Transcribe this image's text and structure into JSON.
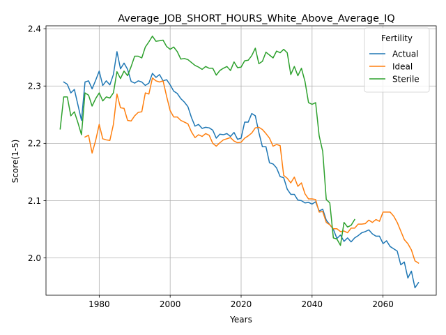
{
  "chart_data": {
    "type": "line",
    "title": "Average_JOB_SHORT_HOURS_White_Above_Average_IQ",
    "xlabel": "Years",
    "ylabel": "Score(1-5)",
    "xlim": [
      1965,
      2075
    ],
    "ylim": [
      1.935,
      2.405
    ],
    "x_ticks": [
      1980,
      2000,
      2020,
      2040,
      2060
    ],
    "y_ticks": [
      2.0,
      2.1,
      2.2,
      2.3,
      2.4
    ],
    "grid": true,
    "legend": {
      "title": "Fertility",
      "placement": "top-right"
    },
    "series": [
      {
        "name": "Actual",
        "color": "#1f77b4",
        "points": [
          [
            1970,
            2.307
          ],
          [
            1971,
            2.303
          ],
          [
            1972,
            2.288
          ],
          [
            1973,
            2.294
          ],
          [
            1974,
            2.267
          ],
          [
            1975,
            2.24
          ],
          [
            1976,
            2.307
          ],
          [
            1977,
            2.309
          ],
          [
            1978,
            2.295
          ],
          [
            1979,
            2.31
          ],
          [
            1980,
            2.326
          ],
          [
            1981,
            2.301
          ],
          [
            1982,
            2.309
          ],
          [
            1983,
            2.302
          ],
          [
            1984,
            2.32
          ],
          [
            1985,
            2.36
          ],
          [
            1986,
            2.33
          ],
          [
            1987,
            2.34
          ],
          [
            1988,
            2.329
          ],
          [
            1989,
            2.308
          ],
          [
            1990,
            2.305
          ],
          [
            1991,
            2.309
          ],
          [
            1992,
            2.307
          ],
          [
            1993,
            2.301
          ],
          [
            1994,
            2.305
          ],
          [
            1995,
            2.322
          ],
          [
            1996,
            2.315
          ],
          [
            1997,
            2.32
          ],
          [
            1998,
            2.309
          ],
          [
            1999,
            2.311
          ],
          [
            2000,
            2.302
          ],
          [
            2001,
            2.291
          ],
          [
            2002,
            2.287
          ],
          [
            2003,
            2.278
          ],
          [
            2004,
            2.272
          ],
          [
            2005,
            2.264
          ],
          [
            2006,
            2.245
          ],
          [
            2007,
            2.23
          ],
          [
            2008,
            2.233
          ],
          [
            2009,
            2.226
          ],
          [
            2010,
            2.228
          ],
          [
            2011,
            2.227
          ],
          [
            2012,
            2.223
          ],
          [
            2013,
            2.209
          ],
          [
            2014,
            2.216
          ],
          [
            2015,
            2.215
          ],
          [
            2016,
            2.217
          ],
          [
            2017,
            2.212
          ],
          [
            2018,
            2.219
          ],
          [
            2019,
            2.207
          ],
          [
            2020,
            2.209
          ],
          [
            2021,
            2.237
          ],
          [
            2022,
            2.237
          ],
          [
            2023,
            2.252
          ],
          [
            2024,
            2.248
          ],
          [
            2025,
            2.219
          ],
          [
            2026,
            2.194
          ],
          [
            2027,
            2.194
          ],
          [
            2028,
            2.166
          ],
          [
            2029,
            2.164
          ],
          [
            2030,
            2.157
          ],
          [
            2031,
            2.142
          ],
          [
            2032,
            2.14
          ],
          [
            2033,
            2.12
          ],
          [
            2034,
            2.111
          ],
          [
            2035,
            2.111
          ],
          [
            2036,
            2.101
          ],
          [
            2037,
            2.1
          ],
          [
            2038,
            2.096
          ],
          [
            2039,
            2.097
          ],
          [
            2040,
            2.094
          ],
          [
            2041,
            2.098
          ],
          [
            2042,
            2.082
          ],
          [
            2043,
            2.085
          ],
          [
            2044,
            2.066
          ],
          [
            2045,
            2.058
          ],
          [
            2046,
            2.05
          ],
          [
            2047,
            2.034
          ],
          [
            2048,
            2.04
          ],
          [
            2049,
            2.029
          ],
          [
            2050,
            2.035
          ],
          [
            2051,
            2.028
          ],
          [
            2052,
            2.035
          ],
          [
            2053,
            2.039
          ],
          [
            2054,
            2.044
          ],
          [
            2055,
            2.046
          ],
          [
            2056,
            2.049
          ],
          [
            2057,
            2.042
          ],
          [
            2058,
            2.038
          ],
          [
            2059,
            2.038
          ],
          [
            2060,
            2.025
          ],
          [
            2061,
            2.03
          ],
          [
            2062,
            2.02
          ],
          [
            2063,
            2.016
          ],
          [
            2064,
            2.012
          ],
          [
            2065,
            1.988
          ],
          [
            2066,
            1.993
          ],
          [
            2067,
            1.965
          ],
          [
            2068,
            1.977
          ],
          [
            2069,
            1.948
          ],
          [
            2070,
            1.957
          ]
        ]
      },
      {
        "name": "Ideal",
        "color": "#ff7f0e",
        "points": [
          [
            1976,
            2.211
          ],
          [
            1977,
            2.214
          ],
          [
            1978,
            2.183
          ],
          [
            1979,
            2.205
          ],
          [
            1980,
            2.233
          ],
          [
            1981,
            2.208
          ],
          [
            1982,
            2.206
          ],
          [
            1983,
            2.205
          ],
          [
            1984,
            2.233
          ],
          [
            1985,
            2.286
          ],
          [
            1986,
            2.262
          ],
          [
            1987,
            2.261
          ],
          [
            1988,
            2.24
          ],
          [
            1989,
            2.239
          ],
          [
            1990,
            2.248
          ],
          [
            1991,
            2.254
          ],
          [
            1992,
            2.255
          ],
          [
            1993,
            2.288
          ],
          [
            1994,
            2.286
          ],
          [
            1995,
            2.314
          ],
          [
            1996,
            2.309
          ],
          [
            1997,
            2.307
          ],
          [
            1998,
            2.309
          ],
          [
            1999,
            2.282
          ],
          [
            2000,
            2.257
          ],
          [
            2001,
            2.246
          ],
          [
            2002,
            2.246
          ],
          [
            2003,
            2.24
          ],
          [
            2004,
            2.237
          ],
          [
            2005,
            2.234
          ],
          [
            2006,
            2.22
          ],
          [
            2007,
            2.21
          ],
          [
            2008,
            2.215
          ],
          [
            2009,
            2.212
          ],
          [
            2010,
            2.217
          ],
          [
            2011,
            2.214
          ],
          [
            2012,
            2.2
          ],
          [
            2013,
            2.195
          ],
          [
            2014,
            2.201
          ],
          [
            2015,
            2.206
          ],
          [
            2016,
            2.208
          ],
          [
            2017,
            2.21
          ],
          [
            2018,
            2.204
          ],
          [
            2019,
            2.201
          ],
          [
            2020,
            2.202
          ],
          [
            2021,
            2.209
          ],
          [
            2022,
            2.213
          ],
          [
            2023,
            2.218
          ],
          [
            2024,
            2.227
          ],
          [
            2025,
            2.228
          ],
          [
            2026,
            2.224
          ],
          [
            2027,
            2.217
          ],
          [
            2028,
            2.209
          ],
          [
            2029,
            2.195
          ],
          [
            2030,
            2.198
          ],
          [
            2031,
            2.196
          ],
          [
            2032,
            2.144
          ],
          [
            2033,
            2.139
          ],
          [
            2034,
            2.131
          ],
          [
            2035,
            2.141
          ],
          [
            2036,
            2.125
          ],
          [
            2037,
            2.131
          ],
          [
            2038,
            2.112
          ],
          [
            2039,
            2.103
          ],
          [
            2040,
            2.103
          ],
          [
            2041,
            2.102
          ],
          [
            2042,
            2.08
          ],
          [
            2043,
            2.081
          ],
          [
            2044,
            2.062
          ],
          [
            2045,
            2.058
          ],
          [
            2046,
            2.051
          ],
          [
            2047,
            2.051
          ],
          [
            2048,
            2.046
          ],
          [
            2049,
            2.047
          ],
          [
            2050,
            2.044
          ],
          [
            2051,
            2.052
          ],
          [
            2052,
            2.052
          ],
          [
            2053,
            2.059
          ],
          [
            2054,
            2.059
          ],
          [
            2055,
            2.06
          ],
          [
            2056,
            2.066
          ],
          [
            2057,
            2.062
          ],
          [
            2058,
            2.067
          ],
          [
            2059,
            2.064
          ],
          [
            2060,
            2.08
          ],
          [
            2061,
            2.08
          ],
          [
            2062,
            2.08
          ],
          [
            2063,
            2.073
          ],
          [
            2064,
            2.062
          ],
          [
            2065,
            2.047
          ],
          [
            2066,
            2.032
          ],
          [
            2067,
            2.025
          ],
          [
            2068,
            2.014
          ],
          [
            2069,
            1.995
          ],
          [
            2070,
            1.991
          ]
        ]
      },
      {
        "name": "Sterile",
        "color": "#2ca02c",
        "points": [
          [
            1969,
            2.225
          ],
          [
            1970,
            2.281
          ],
          [
            1971,
            2.281
          ],
          [
            1972,
            2.248
          ],
          [
            1973,
            2.255
          ],
          [
            1974,
            2.236
          ],
          [
            1975,
            2.215
          ],
          [
            1976,
            2.288
          ],
          [
            1977,
            2.284
          ],
          [
            1978,
            2.265
          ],
          [
            1979,
            2.278
          ],
          [
            1980,
            2.288
          ],
          [
            1981,
            2.274
          ],
          [
            1982,
            2.281
          ],
          [
            1983,
            2.279
          ],
          [
            1984,
            2.288
          ],
          [
            1985,
            2.325
          ],
          [
            1986,
            2.313
          ],
          [
            1987,
            2.326
          ],
          [
            1988,
            2.318
          ],
          [
            1989,
            2.334
          ],
          [
            1990,
            2.352
          ],
          [
            1991,
            2.352
          ],
          [
            1992,
            2.349
          ],
          [
            1993,
            2.368
          ],
          [
            1994,
            2.377
          ],
          [
            1995,
            2.387
          ],
          [
            1996,
            2.378
          ],
          [
            1997,
            2.379
          ],
          [
            1998,
            2.38
          ],
          [
            1999,
            2.369
          ],
          [
            2000,
            2.364
          ],
          [
            2001,
            2.368
          ],
          [
            2002,
            2.36
          ],
          [
            2003,
            2.347
          ],
          [
            2004,
            2.348
          ],
          [
            2005,
            2.346
          ],
          [
            2006,
            2.341
          ],
          [
            2007,
            2.336
          ],
          [
            2008,
            2.333
          ],
          [
            2009,
            2.329
          ],
          [
            2010,
            2.334
          ],
          [
            2011,
            2.331
          ],
          [
            2012,
            2.331
          ],
          [
            2013,
            2.319
          ],
          [
            2014,
            2.327
          ],
          [
            2015,
            2.331
          ],
          [
            2016,
            2.334
          ],
          [
            2017,
            2.327
          ],
          [
            2018,
            2.342
          ],
          [
            2019,
            2.332
          ],
          [
            2020,
            2.333
          ],
          [
            2021,
            2.344
          ],
          [
            2022,
            2.345
          ],
          [
            2023,
            2.353
          ],
          [
            2024,
            2.366
          ],
          [
            2025,
            2.339
          ],
          [
            2026,
            2.343
          ],
          [
            2027,
            2.359
          ],
          [
            2028,
            2.354
          ],
          [
            2029,
            2.349
          ],
          [
            2030,
            2.361
          ],
          [
            2031,
            2.358
          ],
          [
            2032,
            2.364
          ],
          [
            2033,
            2.358
          ],
          [
            2034,
            2.32
          ],
          [
            2035,
            2.334
          ],
          [
            2036,
            2.318
          ],
          [
            2037,
            2.331
          ],
          [
            2038,
            2.308
          ],
          [
            2039,
            2.271
          ],
          [
            2040,
            2.268
          ],
          [
            2041,
            2.271
          ],
          [
            2042,
            2.213
          ],
          [
            2043,
            2.186
          ],
          [
            2044,
            2.102
          ],
          [
            2045,
            2.096
          ],
          [
            2046,
            2.035
          ],
          [
            2047,
            2.033
          ],
          [
            2048,
            2.022
          ],
          [
            2049,
            2.062
          ],
          [
            2050,
            2.054
          ],
          [
            2051,
            2.057
          ],
          [
            2052,
            2.067
          ]
        ]
      }
    ]
  }
}
